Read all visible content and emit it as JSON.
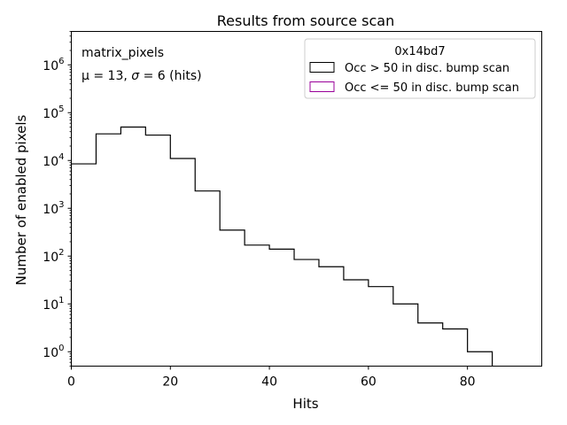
{
  "chart_data": {
    "type": "histogram",
    "title": "Results from source scan",
    "xlabel": "Hits",
    "ylabel": "Number of enabled pixels",
    "xlim": [
      0,
      95
    ],
    "ylim": [
      0.5,
      5000000
    ],
    "yscale": "log",
    "x_ticks": [
      0,
      20,
      40,
      60,
      80
    ],
    "x_tick_labels": [
      "0",
      "20",
      "40",
      "60",
      "80"
    ],
    "y_ticks": [
      1,
      10,
      100,
      1000,
      10000,
      100000,
      1000000
    ],
    "y_tick_labels": [
      {
        "base": "10",
        "exp": "0"
      },
      {
        "base": "10",
        "exp": "1"
      },
      {
        "base": "10",
        "exp": "2"
      },
      {
        "base": "10",
        "exp": "3"
      },
      {
        "base": "10",
        "exp": "4"
      },
      {
        "base": "10",
        "exp": "5"
      },
      {
        "base": "10",
        "exp": "6"
      }
    ],
    "grid": false,
    "annotation": {
      "line1": "matrix_pixels",
      "line2_prefix": "μ = 13, ",
      "line2_sigma": "σ",
      "line2_suffix": " = 6 (hits)"
    },
    "legend": {
      "title": "0x14bd7",
      "placement": "top-right",
      "entries": [
        {
          "label": "Occ > 50 in disc. bump scan",
          "color": "#000000"
        },
        {
          "label": "Occ <= 50 in disc. bump scan",
          "color": "#990099"
        }
      ]
    },
    "bin_edges": [
      0,
      5,
      10,
      15,
      20,
      25,
      30,
      35,
      40,
      45,
      50,
      55,
      60,
      65,
      70,
      75,
      80,
      85
    ],
    "series": [
      {
        "name": "Occ > 50 in disc. bump scan",
        "color": "#000000",
        "values": [
          8500,
          36000,
          50000,
          34000,
          11000,
          2300,
          350,
          170,
          140,
          85,
          60,
          32,
          23,
          10,
          4,
          3,
          1
        ]
      },
      {
        "name": "Occ <= 50 in disc. bump scan",
        "color": "#990099",
        "values": []
      }
    ]
  }
}
